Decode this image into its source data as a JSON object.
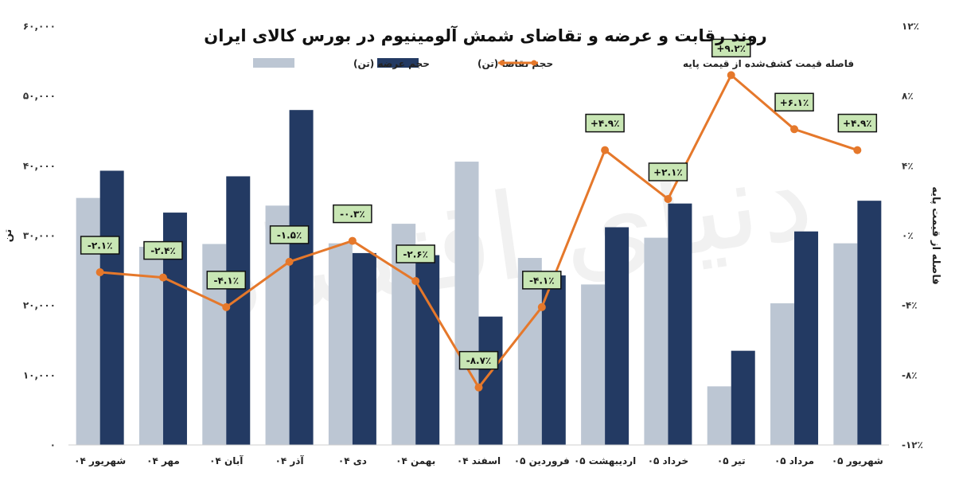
{
  "chart_data": {
    "type": "bar",
    "title": "روند رقابت و عرضه و تقاضای شمش آلومینیوم در بورس کالای ایران",
    "categories": [
      "شهریور ۰۴",
      "مهر ۰۴",
      "آبان ۰۴",
      "آذر ۰۴",
      "دی ۰۴",
      "بهمن ۰۴",
      "اسفند ۰۴",
      "فروردین ۰۵",
      "اردیبهشت ۰۵",
      "خرداد ۰۵",
      "تیر ۰۵",
      "مرداد ۰۵",
      "شهریور ۰۵"
    ],
    "series": [
      {
        "name": "حجم عرضه (تن)",
        "type": "bar",
        "axis": "left",
        "color": "#bcc6d3",
        "values": [
          35400,
          28400,
          28800,
          34300,
          28900,
          31700,
          40600,
          26800,
          23000,
          29700,
          8400,
          20300,
          28900
        ]
      },
      {
        "name": "حجم تقاضا (تن)",
        "type": "bar",
        "axis": "left",
        "color": "#233a63",
        "values": [
          39300,
          33300,
          38500,
          48000,
          27500,
          27200,
          18400,
          24300,
          31200,
          34600,
          13500,
          30600,
          35000
        ]
      },
      {
        "name": "فاصله قیمت کشف‌شده از قیمت پایه",
        "type": "line",
        "axis": "right",
        "color": "#e5782b",
        "values": [
          -2.1,
          -2.4,
          -4.1,
          -1.5,
          -0.3,
          -2.6,
          -8.7,
          -4.1,
          4.9,
          2.1,
          9.2,
          6.1,
          4.9
        ],
        "labels": [
          "-۲.۱٪",
          "-۲.۴٪",
          "-۴.۱٪",
          "-۱.۵٪",
          "-۰.۳٪",
          "-۲.۶٪",
          "-۸.۷٪",
          "-۴.۱٪",
          "+۴.۹٪",
          "+۲.۱٪",
          "+۹.۲٪",
          "+۶.۱٪",
          "+۴.۹٪"
        ]
      }
    ],
    "y_left": {
      "label": "تن",
      "ylim": [
        0,
        60000
      ],
      "ticks": [
        {
          "v": 0,
          "t": "۰"
        },
        {
          "v": 10000,
          "t": "۱۰,۰۰۰"
        },
        {
          "v": 20000,
          "t": "۲۰,۰۰۰"
        },
        {
          "v": 30000,
          "t": "۳۰,۰۰۰"
        },
        {
          "v": 40000,
          "t": "۴۰,۰۰۰"
        },
        {
          "v": 50000,
          "t": "۵۰,۰۰۰"
        },
        {
          "v": 60000,
          "t": "۶۰,۰۰۰"
        }
      ]
    },
    "y_right": {
      "label": "فاصله از قیمت پایه",
      "ylim": [
        -12,
        12
      ],
      "ticks": [
        {
          "v": -12,
          "t": "-۱۲٪"
        },
        {
          "v": -8,
          "t": "-۸٪"
        },
        {
          "v": -4,
          "t": "-۴٪"
        },
        {
          "v": 0,
          "t": "۰٪"
        },
        {
          "v": 4,
          "t": "۴٪"
        },
        {
          "v": 8,
          "t": "۸٪"
        },
        {
          "v": 12,
          "t": "۱۲٪"
        }
      ]
    },
    "grid": false,
    "legend_placement": "top-center",
    "label_box_color": "#c8e6b4"
  },
  "watermark": "دنیای اقتصاد"
}
